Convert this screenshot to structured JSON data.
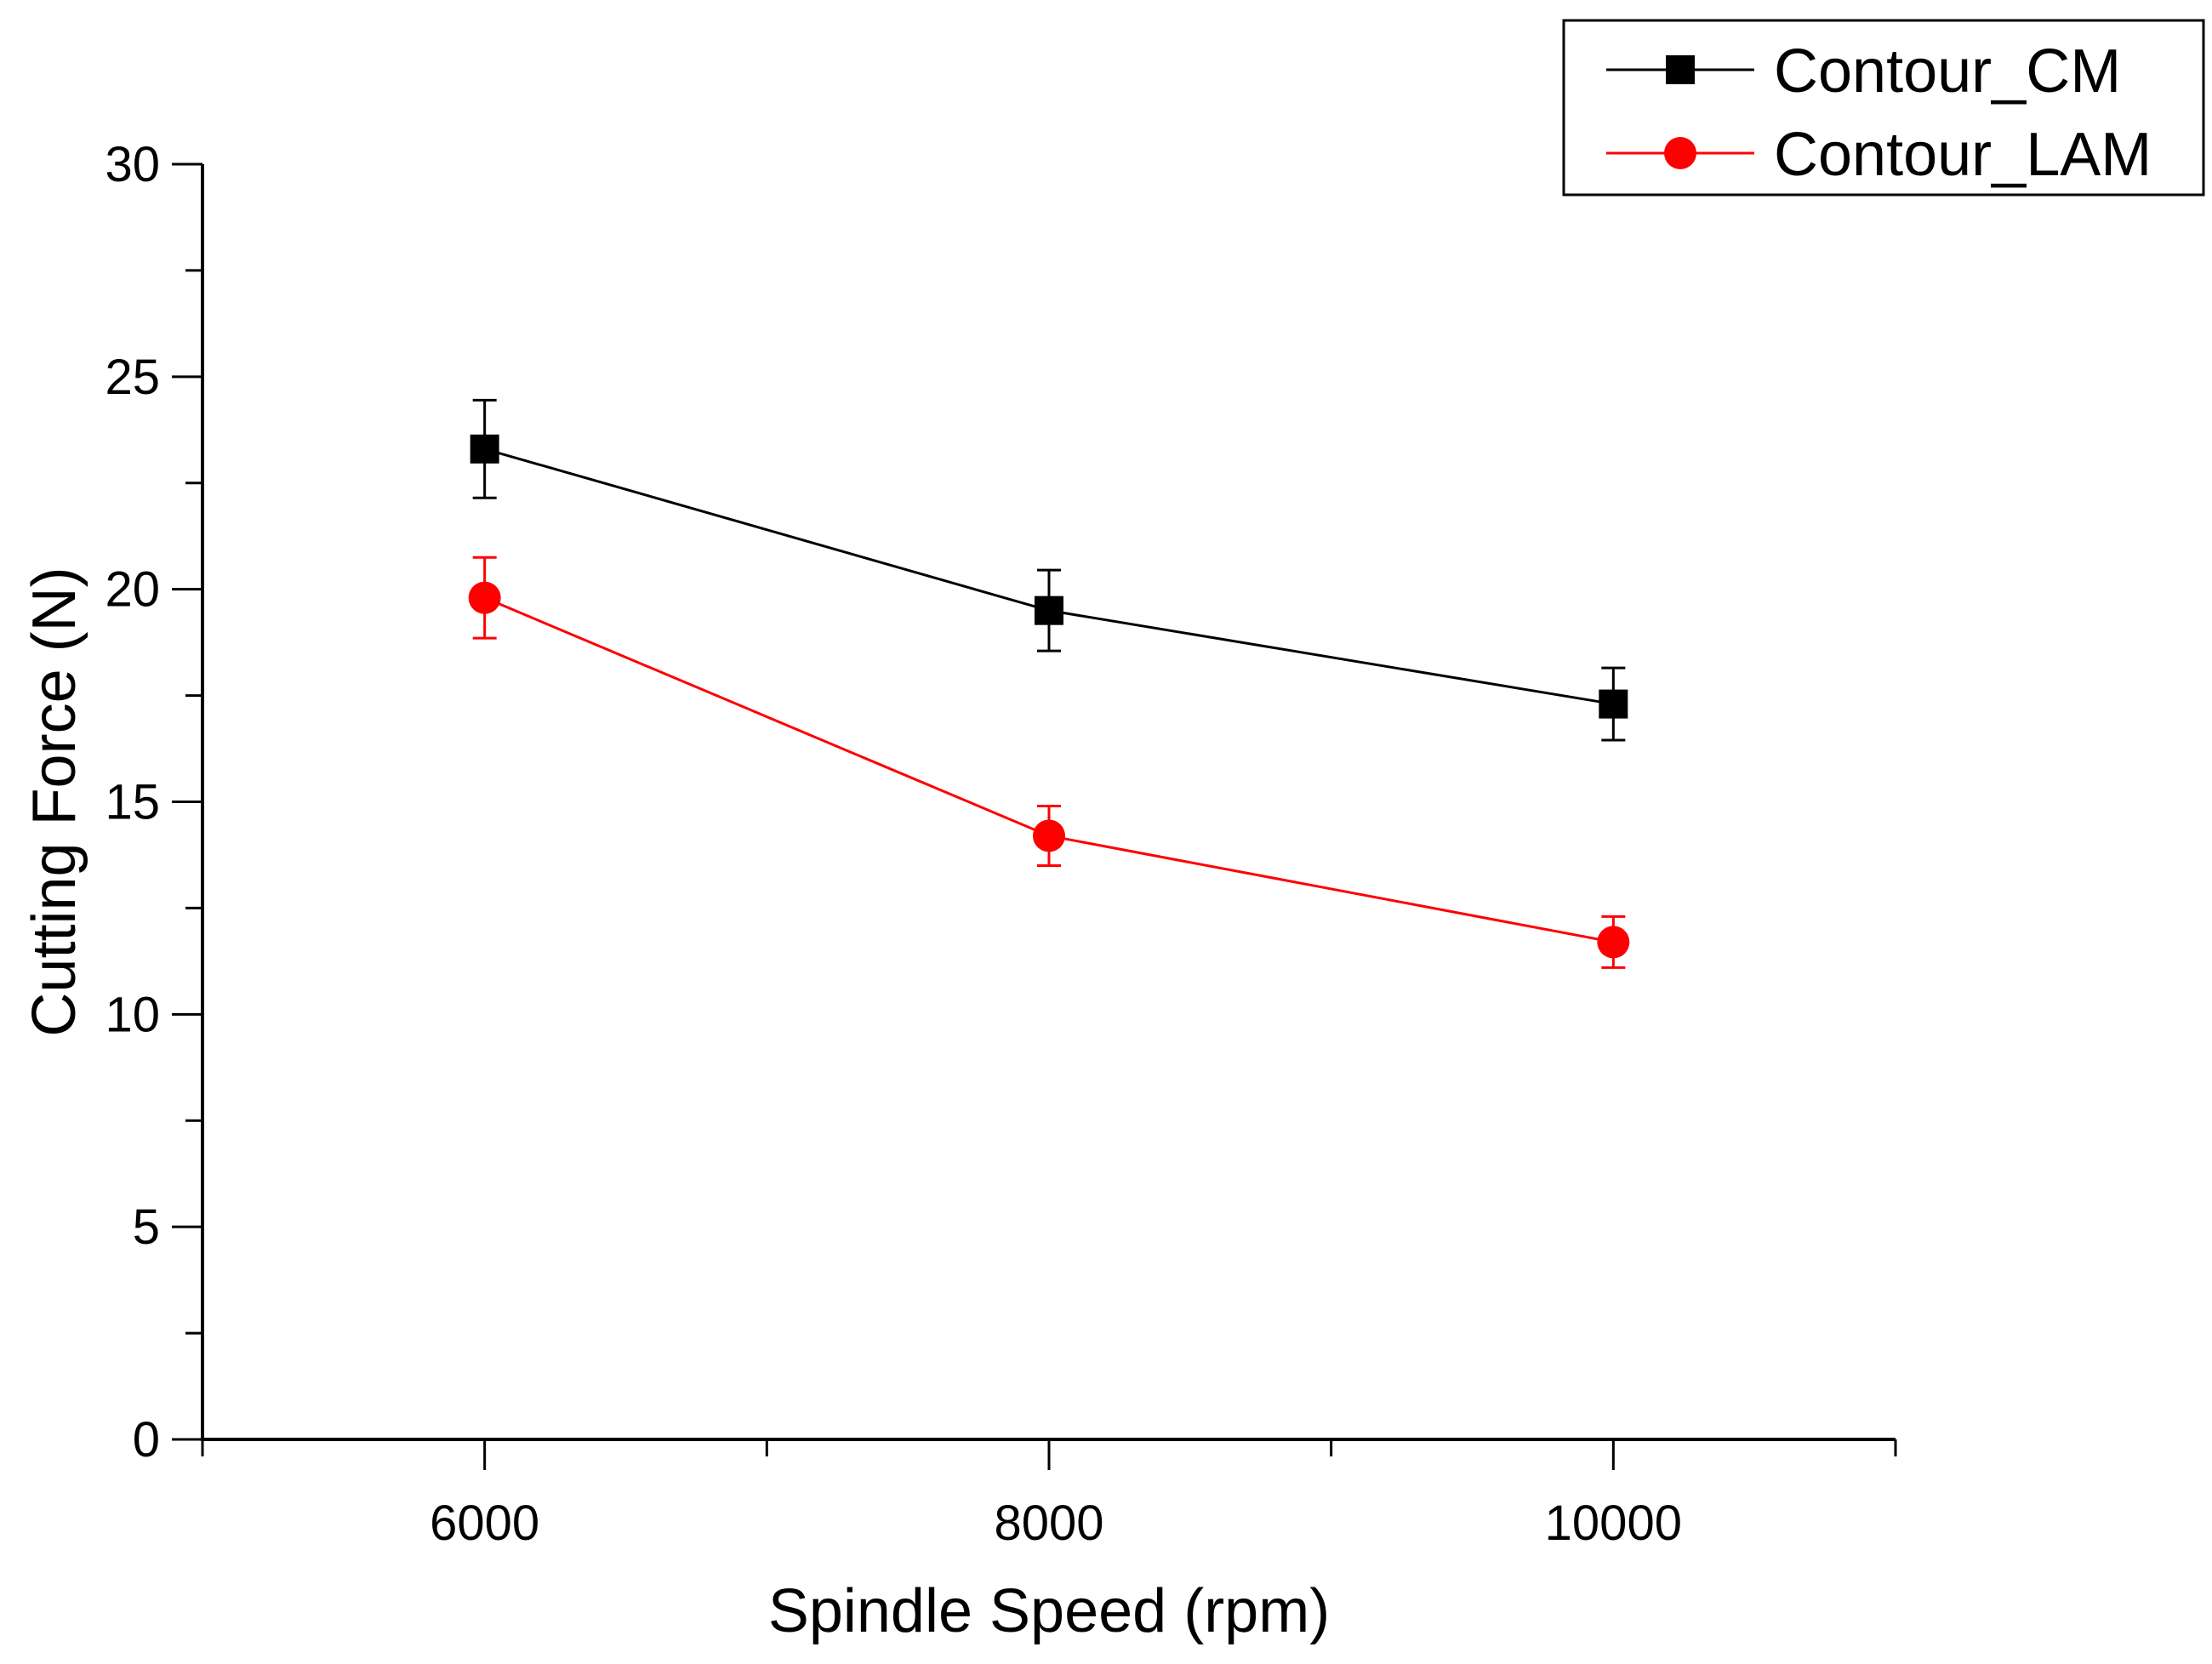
{
  "chart_data": {
    "type": "line",
    "title": "",
    "xlabel": "Spindle Speed (rpm)",
    "ylabel": "Cutting Force (N)",
    "xlim": [
      5000,
      11000
    ],
    "ylim": [
      0,
      30
    ],
    "x_ticks": [
      6000,
      8000,
      10000
    ],
    "y_ticks": [
      0,
      5,
      10,
      15,
      20,
      25,
      30
    ],
    "x_tick_labels": [
      "6000",
      "8000",
      "10000"
    ],
    "y_tick_labels": [
      "0",
      "5",
      "10",
      "15",
      "20",
      "25",
      "30"
    ],
    "grid": false,
    "legend_position": "top-right",
    "x": [
      6000,
      8000,
      10000
    ],
    "series": [
      {
        "name": "Contour_CM",
        "color": "#000000",
        "marker": "square",
        "values": [
          23.3,
          19.5,
          17.3
        ],
        "errors": [
          1.15,
          0.95,
          0.85
        ]
      },
      {
        "name": "Contour_LAM",
        "color": "#ff0000",
        "marker": "circle",
        "values": [
          19.8,
          14.2,
          11.7
        ],
        "errors": [
          0.95,
          0.7,
          0.6
        ]
      }
    ]
  }
}
